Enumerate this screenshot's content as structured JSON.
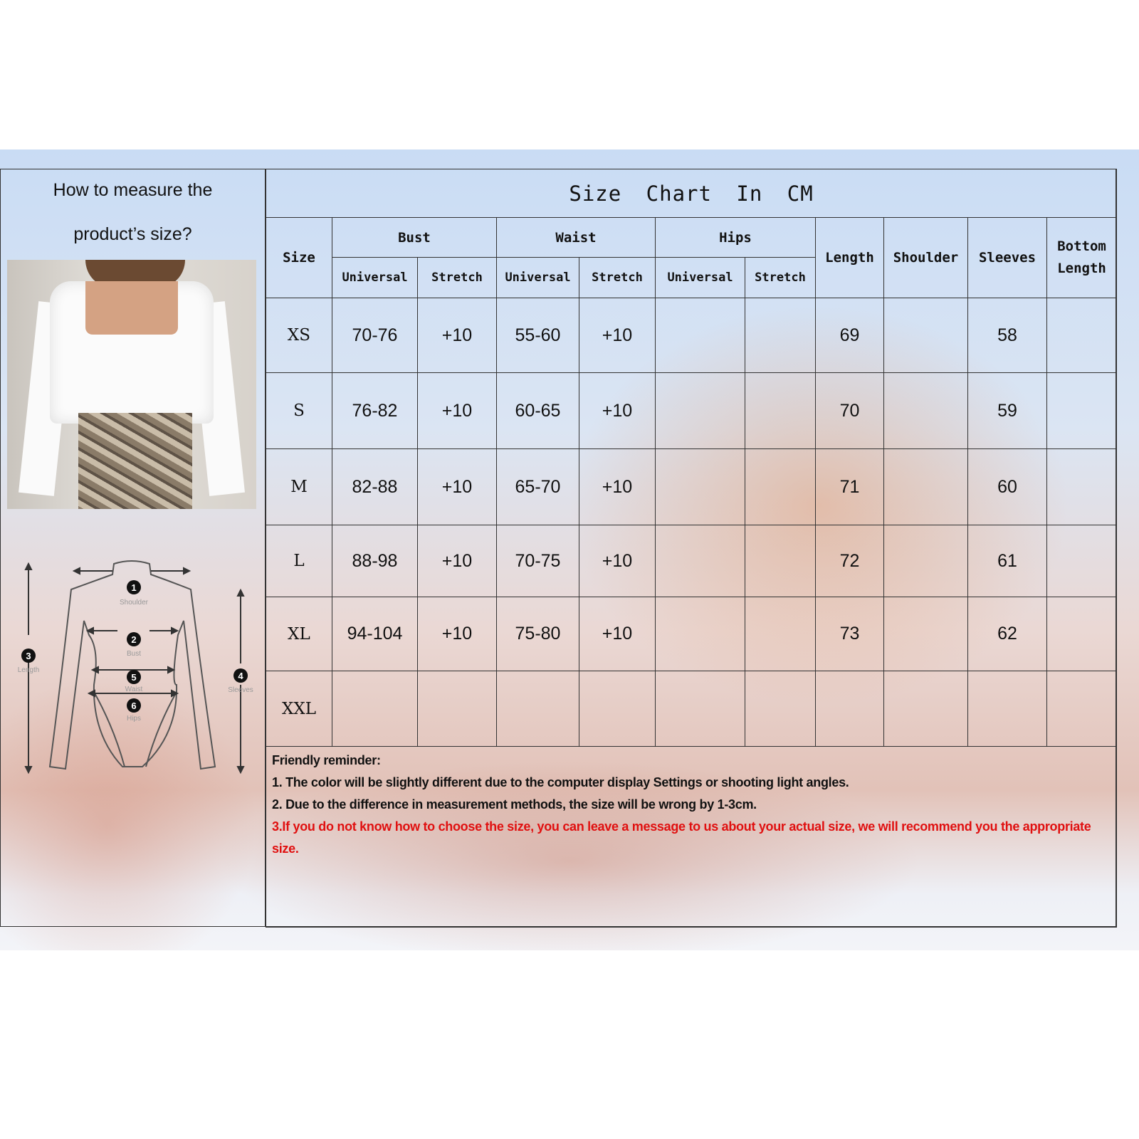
{
  "left_panel": {
    "title_line1": "How to measure the",
    "title_line2": "product’s size?",
    "diagram_labels": {
      "shoulder": {
        "num": "1",
        "label": "Shoulder"
      },
      "bust": {
        "num": "2",
        "label": "Bust"
      },
      "length": {
        "num": "3",
        "label": "Length"
      },
      "sleeves": {
        "num": "4",
        "label": "Sleeves"
      },
      "waist": {
        "num": "5",
        "label": "Waist"
      },
      "hips": {
        "num": "6",
        "label": "Hips"
      }
    }
  },
  "size_chart": {
    "title": "Size Chart In CM",
    "headers": {
      "size": "Size",
      "bust": "Bust",
      "waist": "Waist",
      "hips": "Hips",
      "length": "Length",
      "shoulder": "Shoulder",
      "sleeves": "Sleeves",
      "bottom_length": "Bottom Length",
      "universal": "Universal",
      "stretch": "Stretch"
    },
    "rows": [
      {
        "size": "XS",
        "bust_universal": "70-76",
        "bust_stretch": "+10",
        "waist_universal": "55-60",
        "waist_stretch": "+10",
        "hips_universal": "",
        "hips_stretch": "",
        "length": "69",
        "shoulder": "",
        "sleeves": "58",
        "bottom_length": ""
      },
      {
        "size": "S",
        "bust_universal": "76-82",
        "bust_stretch": "+10",
        "waist_universal": "60-65",
        "waist_stretch": "+10",
        "hips_universal": "",
        "hips_stretch": "",
        "length": "70",
        "shoulder": "",
        "sleeves": "59",
        "bottom_length": ""
      },
      {
        "size": "M",
        "bust_universal": "82-88",
        "bust_stretch": "+10",
        "waist_universal": "65-70",
        "waist_stretch": "+10",
        "hips_universal": "",
        "hips_stretch": "",
        "length": "71",
        "shoulder": "",
        "sleeves": "60",
        "bottom_length": ""
      },
      {
        "size": "L",
        "bust_universal": "88-98",
        "bust_stretch": "+10",
        "waist_universal": "70-75",
        "waist_stretch": "+10",
        "hips_universal": "",
        "hips_stretch": "",
        "length": "72",
        "shoulder": "",
        "sleeves": "61",
        "bottom_length": ""
      },
      {
        "size": "XL",
        "bust_universal": "94-104",
        "bust_stretch": "+10",
        "waist_universal": "75-80",
        "waist_stretch": "+10",
        "hips_universal": "",
        "hips_stretch": "",
        "length": "73",
        "shoulder": "",
        "sleeves": "62",
        "bottom_length": ""
      },
      {
        "size": "XXL",
        "bust_universal": "",
        "bust_stretch": "",
        "waist_universal": "",
        "waist_stretch": "",
        "hips_universal": "",
        "hips_stretch": "",
        "length": "",
        "shoulder": "",
        "sleeves": "",
        "bottom_length": ""
      }
    ]
  },
  "reminder": {
    "heading": "Friendly reminder:",
    "line1": "1. The color will be slightly different due to the computer display Settings or shooting light angles.",
    "line2": "2. Due to the difference in measurement methods, the size will be wrong by 1-3cm.",
    "line3": "3.If you do not know how to choose the size, you can leave a message to us about your actual size, we will recommend you the appropriate size.",
    "highlight_color": "#e01010"
  }
}
